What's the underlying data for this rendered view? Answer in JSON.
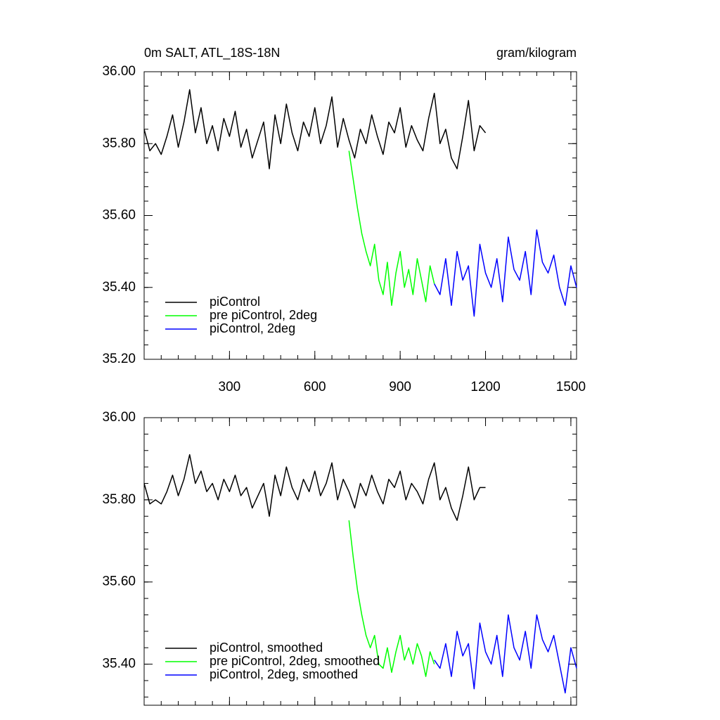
{
  "chart_data": [
    {
      "type": "line",
      "title": "0m SALT, ATL_18S-18N",
      "units_label": "gram/kilogram",
      "xlim": [
        0,
        1520
      ],
      "xticks": [
        300,
        600,
        900,
        1200,
        1500
      ],
      "ylim": [
        35.2,
        36.0
      ],
      "yticks": [
        {
          "value": 35.2,
          "label": "35.20"
        },
        {
          "value": 35.4,
          "label": "35.40"
        },
        {
          "value": 35.6,
          "label": "35.60"
        },
        {
          "value": 35.8,
          "label": "35.80"
        },
        {
          "value": 36.0,
          "label": "36.00"
        }
      ],
      "legend": "lower left",
      "series": [
        {
          "name": "piControl",
          "color": "#000000",
          "x": [
            0,
            20,
            40,
            60,
            80,
            100,
            120,
            140,
            160,
            180,
            200,
            220,
            240,
            260,
            280,
            300,
            320,
            340,
            360,
            380,
            400,
            420,
            440,
            460,
            480,
            500,
            520,
            540,
            560,
            580,
            600,
            620,
            640,
            660,
            680,
            700,
            720,
            740,
            760,
            780,
            800,
            820,
            840,
            860,
            880,
            900,
            920,
            940,
            960,
            980,
            1000,
            1020,
            1040,
            1060,
            1080,
            1100,
            1120,
            1140,
            1160,
            1180,
            1200
          ],
          "values": [
            35.84,
            35.78,
            35.8,
            35.77,
            35.82,
            35.88,
            35.79,
            35.86,
            35.95,
            35.83,
            35.9,
            35.8,
            35.85,
            35.78,
            35.87,
            35.82,
            35.89,
            35.79,
            35.84,
            35.76,
            35.81,
            35.86,
            35.73,
            35.88,
            35.8,
            35.91,
            35.83,
            35.78,
            35.86,
            35.82,
            35.9,
            35.8,
            35.85,
            35.93,
            35.79,
            35.87,
            35.81,
            35.76,
            35.84,
            35.8,
            35.88,
            35.82,
            35.77,
            35.86,
            35.83,
            35.9,
            35.79,
            35.85,
            35.81,
            35.78,
            35.87,
            35.94,
            35.8,
            35.84,
            35.76,
            35.73,
            35.82,
            35.92,
            35.78,
            35.85,
            35.83
          ]
        },
        {
          "name": "pre piControl, 2deg",
          "color": "#00ff00",
          "x": [
            720,
            735,
            750,
            765,
            780,
            795,
            810,
            825,
            840,
            855,
            870,
            885,
            900,
            915,
            930,
            945,
            960,
            975,
            990,
            1005,
            1020
          ],
          "values": [
            35.78,
            35.7,
            35.62,
            35.55,
            35.5,
            35.46,
            35.52,
            35.42,
            35.38,
            35.47,
            35.35,
            35.44,
            35.5,
            35.4,
            35.45,
            35.38,
            35.48,
            35.42,
            35.36,
            35.46,
            35.41
          ]
        },
        {
          "name": "piControl, 2deg",
          "color": "#0000ff",
          "x": [
            1020,
            1040,
            1060,
            1080,
            1100,
            1120,
            1140,
            1160,
            1180,
            1200,
            1220,
            1240,
            1260,
            1280,
            1300,
            1320,
            1340,
            1360,
            1380,
            1400,
            1420,
            1440,
            1460,
            1480,
            1500,
            1520
          ],
          "values": [
            35.41,
            35.38,
            35.48,
            35.35,
            35.5,
            35.42,
            35.46,
            35.32,
            35.52,
            35.44,
            35.4,
            35.48,
            35.36,
            35.54,
            35.45,
            35.42,
            35.5,
            35.38,
            35.56,
            35.47,
            35.44,
            35.49,
            35.4,
            35.35,
            35.46,
            35.4
          ]
        }
      ]
    },
    {
      "type": "line",
      "xlim": [
        0,
        1520
      ],
      "xticks": [
        300,
        600,
        900,
        1200,
        1500
      ],
      "x_tick_labels": false,
      "ylim": [
        35.3,
        36.0
      ],
      "yticks": [
        {
          "value": 35.4,
          "label": "35.40"
        },
        {
          "value": 35.6,
          "label": "35.60"
        },
        {
          "value": 35.8,
          "label": "35.80"
        },
        {
          "value": 36.0,
          "label": "36.00"
        }
      ],
      "legend": "lower left",
      "series": [
        {
          "name": "piControl, smoothed",
          "color": "#000000",
          "x": [
            0,
            20,
            40,
            60,
            80,
            100,
            120,
            140,
            160,
            180,
            200,
            220,
            240,
            260,
            280,
            300,
            320,
            340,
            360,
            380,
            400,
            420,
            440,
            460,
            480,
            500,
            520,
            540,
            560,
            580,
            600,
            620,
            640,
            660,
            680,
            700,
            720,
            740,
            760,
            780,
            800,
            820,
            840,
            860,
            880,
            900,
            920,
            940,
            960,
            980,
            1000,
            1020,
            1040,
            1060,
            1080,
            1100,
            1120,
            1140,
            1160,
            1180,
            1200
          ],
          "values": [
            35.84,
            35.79,
            35.8,
            35.79,
            35.82,
            35.86,
            35.81,
            35.85,
            35.91,
            35.84,
            35.87,
            35.82,
            35.84,
            35.8,
            35.85,
            35.82,
            35.86,
            35.81,
            35.83,
            35.78,
            35.81,
            35.84,
            35.76,
            35.86,
            35.81,
            35.88,
            35.83,
            35.8,
            35.85,
            35.82,
            35.87,
            35.81,
            35.84,
            35.89,
            35.8,
            35.85,
            35.82,
            35.78,
            35.84,
            35.81,
            35.86,
            35.82,
            35.79,
            35.85,
            35.83,
            35.87,
            35.8,
            35.84,
            35.82,
            35.79,
            35.85,
            35.89,
            35.8,
            35.83,
            35.78,
            35.75,
            35.81,
            35.88,
            35.8,
            35.83,
            35.83
          ]
        },
        {
          "name": "pre piControl, 2deg, smoothed",
          "color": "#00ff00",
          "x": [
            720,
            735,
            750,
            765,
            780,
            795,
            810,
            825,
            840,
            855,
            870,
            885,
            900,
            915,
            930,
            945,
            960,
            975,
            990,
            1005,
            1020
          ],
          "values": [
            35.75,
            35.66,
            35.58,
            35.52,
            35.47,
            35.44,
            35.47,
            35.4,
            35.39,
            35.44,
            35.38,
            35.43,
            35.47,
            35.41,
            35.44,
            35.4,
            35.45,
            35.42,
            35.37,
            35.43,
            35.4
          ]
        },
        {
          "name": "piControl, 2deg, smoothed",
          "color": "#0000ff",
          "x": [
            1020,
            1040,
            1060,
            1080,
            1100,
            1120,
            1140,
            1160,
            1180,
            1200,
            1220,
            1240,
            1260,
            1280,
            1300,
            1320,
            1340,
            1360,
            1380,
            1400,
            1420,
            1440,
            1460,
            1480,
            1500,
            1520
          ],
          "values": [
            35.41,
            35.39,
            35.45,
            35.37,
            35.48,
            35.42,
            35.45,
            35.34,
            35.5,
            35.43,
            35.4,
            35.47,
            35.37,
            35.52,
            35.44,
            35.41,
            35.48,
            35.39,
            35.52,
            35.46,
            35.43,
            35.47,
            35.4,
            35.33,
            35.44,
            35.39
          ]
        }
      ]
    }
  ]
}
